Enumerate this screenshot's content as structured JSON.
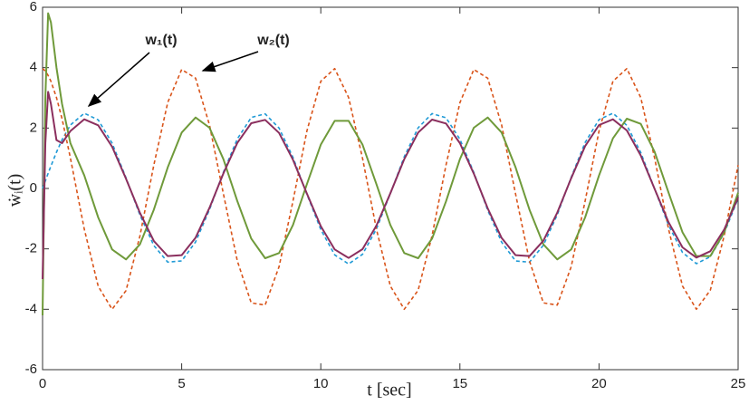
{
  "chart_data": {
    "type": "line",
    "xlabel": "t [sec]",
    "ylabel": "ẇᵢ(t)",
    "annotations": [
      "w₁(t)",
      "w₂(t)"
    ],
    "xlim": [
      0,
      25
    ],
    "xticks": [
      0,
      5,
      10,
      15,
      20,
      25
    ],
    "ylim": [
      -6,
      6
    ],
    "yticks": [
      -6,
      -4,
      -2,
      0,
      2,
      4,
      6
    ],
    "grid": false,
    "x": [
      0,
      0.1,
      0.2,
      0.3,
      0.5,
      0.7,
      1,
      1.5,
      2,
      2.5,
      3,
      3.5,
      4,
      4.5,
      5,
      5.5,
      6,
      6.5,
      7,
      7.5,
      8,
      8.5,
      9,
      9.5,
      10,
      10.5,
      11,
      11.5,
      12,
      12.5,
      13,
      13.5,
      14,
      14.5,
      15,
      15.5,
      16,
      16.5,
      17,
      17.5,
      18,
      18.5,
      19,
      19.5,
      20,
      20.5,
      21,
      21.5,
      22,
      22.5,
      23,
      23.5,
      24,
      24.5,
      25
    ],
    "series": [
      {
        "color": "#1f9ad6",
        "style": "dashed",
        "values": [
          0,
          0.25,
          0.5,
          0.74,
          1.2,
          1.61,
          2.1,
          2.49,
          2.27,
          1.5,
          0.35,
          -0.88,
          -1.89,
          -2.44,
          -2.4,
          -1.77,
          -0.7,
          0.54,
          1.64,
          2.35,
          2.47,
          2.0,
          1.03,
          -0.19,
          -1.36,
          -2.2,
          -2.5,
          -2.18,
          -1.34,
          -0.17,
          1.05,
          2.01,
          2.48,
          2.34,
          1.63,
          0.53,
          -0.72,
          -1.78,
          -2.4,
          -2.44,
          -1.88,
          -0.87,
          0.37,
          1.52,
          2.28,
          2.49,
          2.09,
          1.19,
          -0.02,
          -1.22,
          -2.12,
          -2.49,
          -2.26,
          -1.48,
          -0.33
        ]
      },
      {
        "color": "#d9541a",
        "style": "dashed",
        "values": [
          3.97,
          3.89,
          3.74,
          3.55,
          3.01,
          2.31,
          1.01,
          -1.35,
          -3.24,
          -4.0,
          -3.38,
          -1.57,
          0.78,
          2.85,
          3.94,
          3.65,
          2.1,
          -0.18,
          -2.4,
          -3.79,
          -3.86,
          -2.59,
          -0.42,
          1.9,
          3.55,
          3.97,
          3.01,
          1.0,
          -1.35,
          -3.23,
          -4.0,
          -3.37,
          -1.56,
          0.77,
          2.84,
          3.94,
          3.65,
          2.1,
          -0.18,
          -2.4,
          -3.79,
          -3.86,
          -2.59,
          -0.42,
          1.9,
          3.55,
          3.97,
          3.01,
          1.0,
          -1.35,
          -3.23,
          -4.0,
          -3.37,
          -1.56,
          0.77
        ]
      },
      {
        "color": "#6f9a3a",
        "style": "solid",
        "values": [
          -4.2,
          3,
          5.8,
          5.5,
          4.0,
          2.8,
          1.5,
          0.43,
          -0.96,
          -2.02,
          -2.35,
          -1.85,
          -0.7,
          0.7,
          1.85,
          2.35,
          2.01,
          0.97,
          -0.42,
          -1.66,
          -2.31,
          -2.14,
          -1.21,
          0.14,
          1.45,
          2.24,
          2.24,
          1.45,
          0.14,
          -1.21,
          -2.14,
          -2.31,
          -1.66,
          -0.43,
          0.97,
          2.01,
          2.35,
          1.85,
          0.7,
          -0.7,
          -1.85,
          -2.35,
          -2.02,
          -0.96,
          0.43,
          1.66,
          2.31,
          2.14,
          1.21,
          -0.14,
          -1.45,
          -2.24,
          -2.24,
          -1.45,
          -0.14
        ]
      },
      {
        "color": "#8b2f5e",
        "style": "solid",
        "values": [
          -3,
          1.5,
          3.2,
          2.8,
          1.6,
          1.5,
          1.9,
          2.29,
          2.09,
          1.38,
          0.32,
          -0.81,
          -1.74,
          -2.24,
          -2.21,
          -1.63,
          -0.64,
          0.5,
          1.51,
          2.16,
          2.27,
          1.84,
          0.95,
          -0.17,
          -1.25,
          -2.02,
          -2.3,
          -2.01,
          -1.23,
          -0.16,
          0.97,
          1.85,
          2.28,
          2.15,
          1.5,
          0.49,
          -0.66,
          -1.64,
          -2.21,
          -2.24,
          -1.73,
          -0.8,
          0.34,
          1.4,
          2.1,
          2.29,
          1.92,
          1.09,
          -0.02,
          -1.12,
          -1.95,
          -2.29,
          -2.08,
          -1.36,
          -0.3
        ]
      }
    ]
  }
}
